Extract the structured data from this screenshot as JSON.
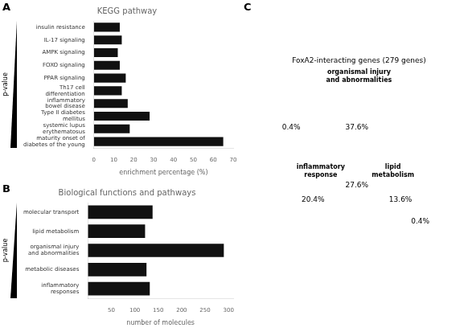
{
  "chart_data": [
    {
      "type": "bar",
      "orientation": "horizontal",
      "title": "KEGG pathway",
      "categories": [
        "insulin resistance",
        "IL-17 signaling",
        "AMPK signaling",
        "FOXO signaling",
        "PPAR signaling",
        "Th17 cell\ndifferentiation",
        "inflammatory\nbowel disease",
        "Type II diabetes\nmellitus",
        "systemic lupus\nerythematosus",
        "maturity onset of\ndiabetes of the young"
      ],
      "values": [
        13,
        14,
        12,
        13,
        16,
        14,
        17,
        28,
        18,
        65
      ],
      "xlabel": "enrichment percentage (%)",
      "xlim": [
        0,
        70
      ],
      "xticks": [
        0,
        10,
        20,
        30,
        40,
        50,
        60,
        70
      ],
      "color": "#111111",
      "grid": false,
      "legend": false,
      "annotations": [
        "A",
        "p-value"
      ]
    },
    {
      "type": "bar",
      "orientation": "horizontal",
      "title": "Biological functions and pathways",
      "categories": [
        "molecular transport",
        "lipid metabolism",
        "organismal injury\nand abnormalities",
        "metabolic diseases",
        "inflammatory\nresponses"
      ],
      "values": [
        138,
        122,
        290,
        125,
        132
      ],
      "xlabel": "number of molecules",
      "xlim": [
        0,
        310
      ],
      "xticks": [
        50,
        100,
        150,
        200,
        250,
        300
      ],
      "color": "#111111",
      "grid": false,
      "legend": false,
      "annotations": [
        "B",
        "p-value"
      ]
    },
    {
      "type": "venn",
      "title": "FoxA2-interacting genes (279 genes)",
      "series": [
        {
          "name": "organismal injury\nand abnormalities",
          "color": "#aed6ea"
        },
        {
          "name": "inflammatory\nresponse",
          "color": "#b8dff0"
        },
        {
          "name": "lipid\nmetabolism",
          "color": "#c5d0e8"
        }
      ],
      "values": [
        0.4,
        37.6,
        20.4,
        27.6,
        13.6,
        0.4
      ],
      "value_labels": [
        "0.4%",
        "37.6%",
        "20.4%",
        "27.6%",
        "13.6%",
        "0.4%"
      ],
      "data_labels": true,
      "legend": false,
      "annotations": [
        "C"
      ]
    }
  ]
}
